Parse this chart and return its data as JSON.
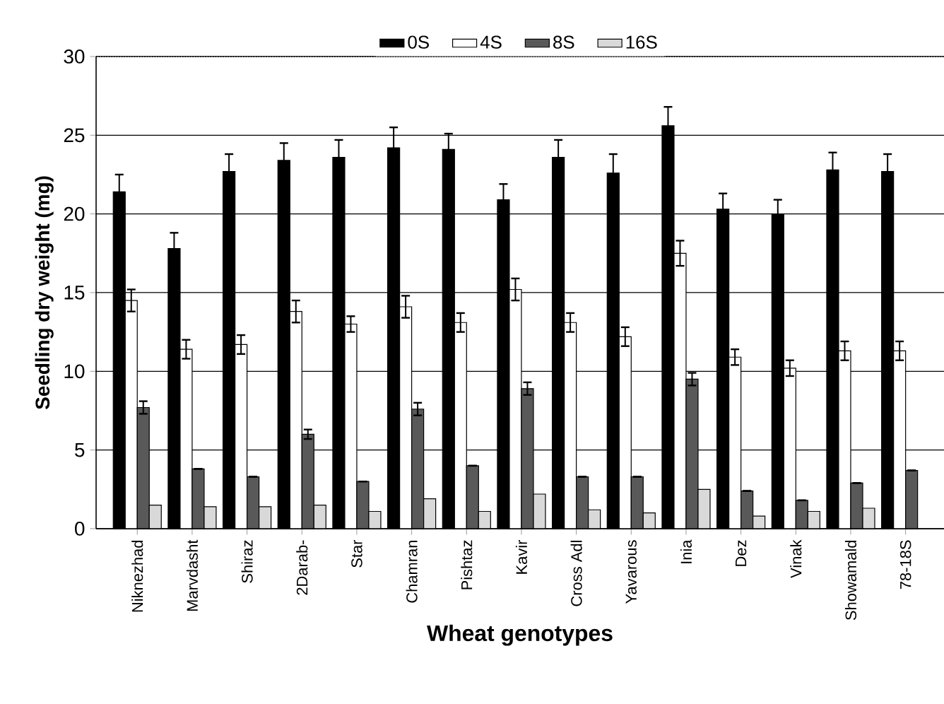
{
  "chart_data": {
    "type": "bar",
    "xlabel": "Wheat genotypes",
    "ylabel": "Seedling dry weight (mg)",
    "categories": [
      "Niknezhad",
      "Marvdasht",
      "Shiraz",
      "2Darab-",
      "Star",
      "Chamran",
      "Pishtaz",
      "Kavir",
      "Cross Adl",
      "Yavarous",
      "Inia",
      "Dez",
      "Vinak",
      "Showamald",
      "78-18S"
    ],
    "series": [
      {
        "name": "0S",
        "color": "#000000",
        "values": [
          21.4,
          17.8,
          22.7,
          23.4,
          23.6,
          24.2,
          24.1,
          20.9,
          23.6,
          22.6,
          25.6,
          20.3,
          20.0,
          22.8,
          22.7
        ],
        "errors": [
          1.1,
          1.0,
          1.1,
          1.1,
          1.1,
          1.3,
          1.0,
          1.0,
          1.1,
          1.2,
          1.2,
          1.0,
          0.9,
          1.1,
          1.1
        ]
      },
      {
        "name": "4S",
        "color": "#ffffff",
        "values": [
          14.5,
          11.4,
          11.7,
          13.8,
          13.0,
          14.1,
          13.1,
          15.2,
          13.1,
          12.2,
          17.5,
          10.9,
          10.2,
          11.3,
          11.3
        ],
        "errors": [
          0.7,
          0.6,
          0.6,
          0.7,
          0.5,
          0.7,
          0.6,
          0.7,
          0.6,
          0.6,
          0.8,
          0.5,
          0.5,
          0.6,
          0.6
        ]
      },
      {
        "name": "8S",
        "color": "#595959",
        "values": [
          7.7,
          3.8,
          3.3,
          6.0,
          3.0,
          7.6,
          4.0,
          8.9,
          3.3,
          3.3,
          9.5,
          2.4,
          1.8,
          2.9,
          3.7
        ],
        "errors": [
          0.4,
          null,
          null,
          0.3,
          null,
          0.4,
          null,
          0.4,
          null,
          null,
          0.4,
          null,
          null,
          null,
          null
        ]
      },
      {
        "name": "16S",
        "color": "#d9d9d9",
        "values": [
          1.5,
          1.4,
          1.4,
          1.5,
          1.1,
          1.9,
          1.1,
          2.2,
          1.2,
          1.0,
          2.5,
          0.8,
          1.1,
          1.3,
          null
        ]
      }
    ],
    "ylim": [
      0,
      30
    ],
    "yticks": [
      0,
      5,
      10,
      15,
      20,
      25,
      30
    ],
    "grid": "y",
    "legend": "top"
  }
}
